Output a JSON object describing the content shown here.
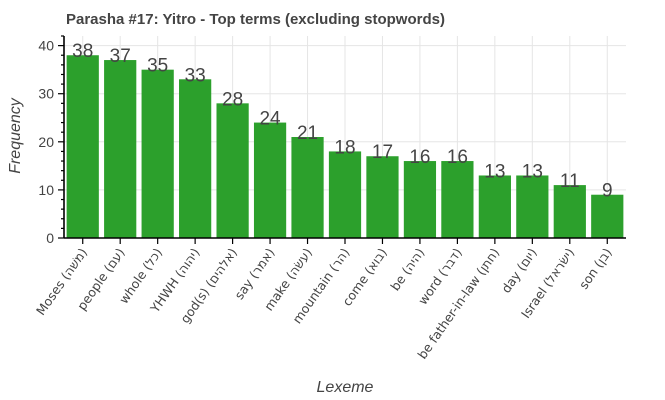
{
  "chart_data": {
    "type": "bar",
    "title": "Parasha #17: Yitro - Top terms (excluding stopwords)",
    "xlabel": "Lexeme",
    "ylabel": "Frequency",
    "categories": [
      "Moses (משׁה)",
      "people (עם)",
      "whole (כל)",
      "YHWH (יהוה)",
      "god(s) (אלהים)",
      "say (אמר)",
      "make (עשׂה)",
      "mountain (הר)",
      "come (בוא)",
      "be (היה)",
      "word (דבר)",
      "be father-in-law (חתן)",
      "day (יום)",
      "Israel (ישׂראל)",
      "son (בן)"
    ],
    "values": [
      38,
      37,
      35,
      33,
      28,
      24,
      21,
      18,
      17,
      16,
      16,
      13,
      13,
      11,
      9
    ],
    "ylim": [
      0,
      42
    ],
    "yticks": [
      0,
      10,
      20,
      30,
      40
    ],
    "grid": true,
    "bar_color": "#2ca02c"
  }
}
